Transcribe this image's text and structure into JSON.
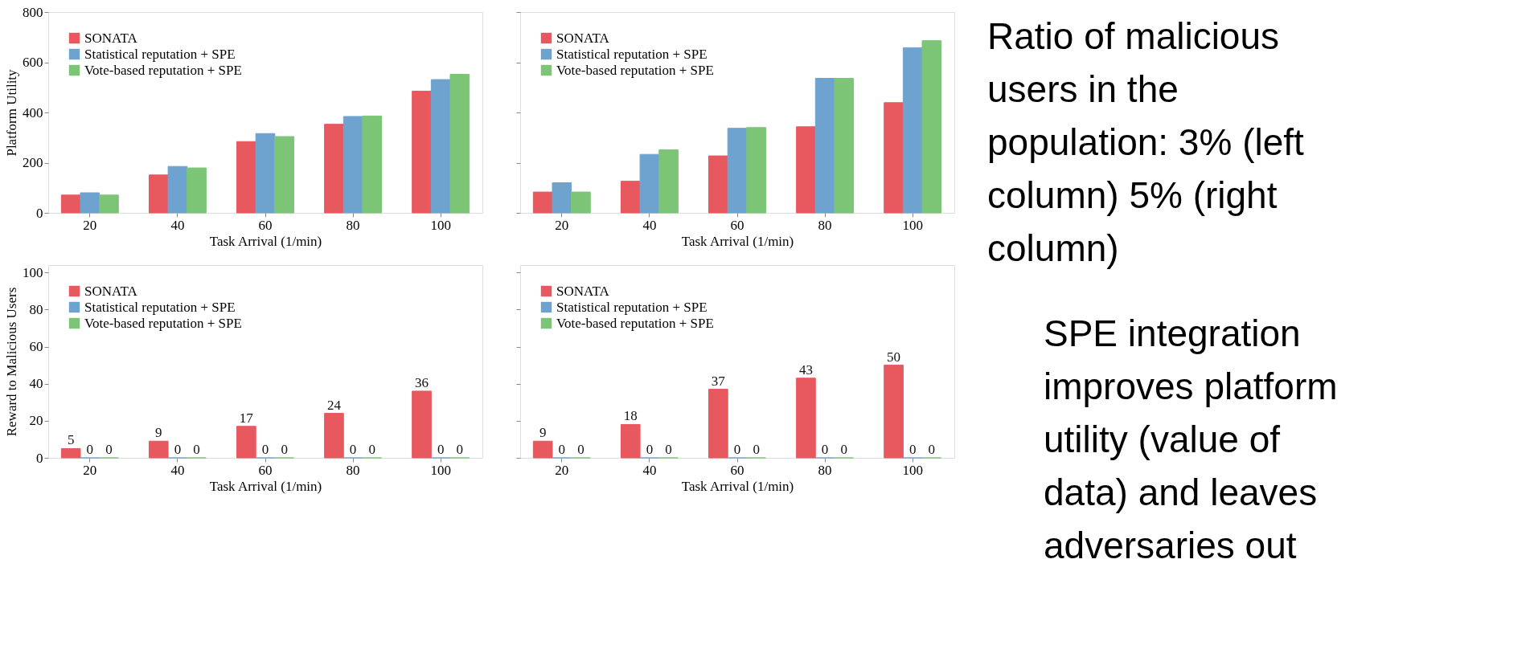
{
  "chart_data": [
    {
      "type": "bar",
      "categories": [
        "20",
        "40",
        "60",
        "80",
        "100"
      ],
      "xlabel": "Task Arrival (1/min)",
      "ylabel": "Platform Utility",
      "ylim": [
        0,
        800
      ],
      "yticks": [
        0,
        200,
        400,
        600,
        800
      ],
      "legend": "top left",
      "series": [
        {
          "name": "SONATA",
          "color": "#e8585f",
          "values": [
            71,
            151,
            284,
            353,
            485
          ]
        },
        {
          "name": "Statistical reputation + SPE",
          "color": "#6fa3cf",
          "values": [
            80,
            185,
            316,
            384,
            531
          ]
        },
        {
          "name": "Vote-based reputation + SPE",
          "color": "#7cc576",
          "values": [
            71,
            179,
            304,
            386,
            552
          ]
        }
      ]
    },
    {
      "type": "bar",
      "categories": [
        "20",
        "40",
        "60",
        "80",
        "100"
      ],
      "xlabel": "Task Arrival (1/min)",
      "ylim": [
        0,
        800
      ],
      "yticks": [
        0,
        200,
        400,
        600,
        800
      ],
      "tick_labels": "x",
      "legend": "top left",
      "series": [
        {
          "name": "SONATA",
          "color": "#e8585f",
          "values": [
            83,
            126,
            227,
            343,
            439
          ]
        },
        {
          "name": "Statistical reputation + SPE",
          "color": "#6fa3cf",
          "values": [
            120,
            233,
            337,
            536,
            658
          ]
        },
        {
          "name": "Vote-based reputation + SPE",
          "color": "#7cc576",
          "values": [
            83,
            251,
            340,
            536,
            686
          ]
        }
      ]
    },
    {
      "type": "bar",
      "categories": [
        "20",
        "40",
        "60",
        "80",
        "100"
      ],
      "xlabel": "Task Arrival (1/min)",
      "ylabel": "Reward to Malicious Users",
      "ylim": [
        0,
        104
      ],
      "yticks": [
        0,
        20,
        40,
        60,
        80,
        100
      ],
      "legend": "top left",
      "data_labels": true,
      "series": [
        {
          "name": "SONATA",
          "color": "#e8585f",
          "values": [
            5,
            9,
            17,
            24,
            36
          ]
        },
        {
          "name": "Statistical reputation + SPE",
          "color": "#6fa3cf",
          "values": [
            0,
            0,
            0,
            0,
            0
          ]
        },
        {
          "name": "Vote-based reputation + SPE",
          "color": "#7cc576",
          "values": [
            0,
            0,
            0,
            0,
            0
          ]
        }
      ]
    },
    {
      "type": "bar",
      "categories": [
        "20",
        "40",
        "60",
        "80",
        "100"
      ],
      "xlabel": "Task Arrival (1/min)",
      "ylim": [
        0,
        104
      ],
      "yticks": [
        0,
        20,
        40,
        60,
        80,
        100
      ],
      "tick_labels": "x",
      "legend": "top left",
      "data_labels": true,
      "series": [
        {
          "name": "SONATA",
          "color": "#e8585f",
          "values": [
            9,
            18,
            37,
            43,
            50
          ]
        },
        {
          "name": "Statistical reputation + SPE",
          "color": "#6fa3cf",
          "values": [
            0,
            0,
            0,
            0,
            0
          ]
        },
        {
          "name": "Vote-based reputation + SPE",
          "color": "#7cc576",
          "values": [
            0,
            0,
            0,
            0,
            0
          ]
        }
      ]
    },
    {
      "type": "other",
      "annotations": [
        "Ratio of malicious users in the population: 3% (left column) 5% (right column)",
        "SPE integration improves platform utility (value of data) and leaves adversaries out"
      ]
    }
  ]
}
